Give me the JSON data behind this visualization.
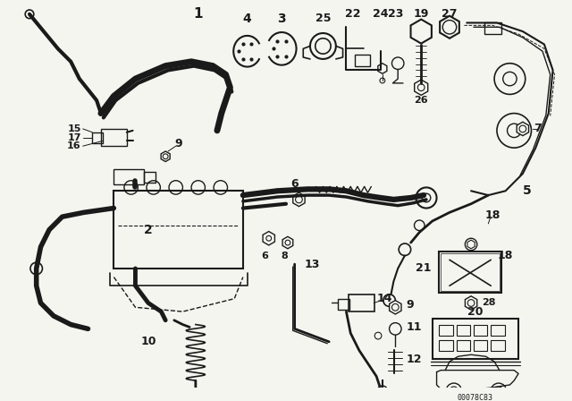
{
  "background_color": "#f5f5f0",
  "line_color": "#1a1a1a",
  "figsize": [
    6.4,
    4.48
  ],
  "dpi": 100,
  "watermark": "00078C83"
}
